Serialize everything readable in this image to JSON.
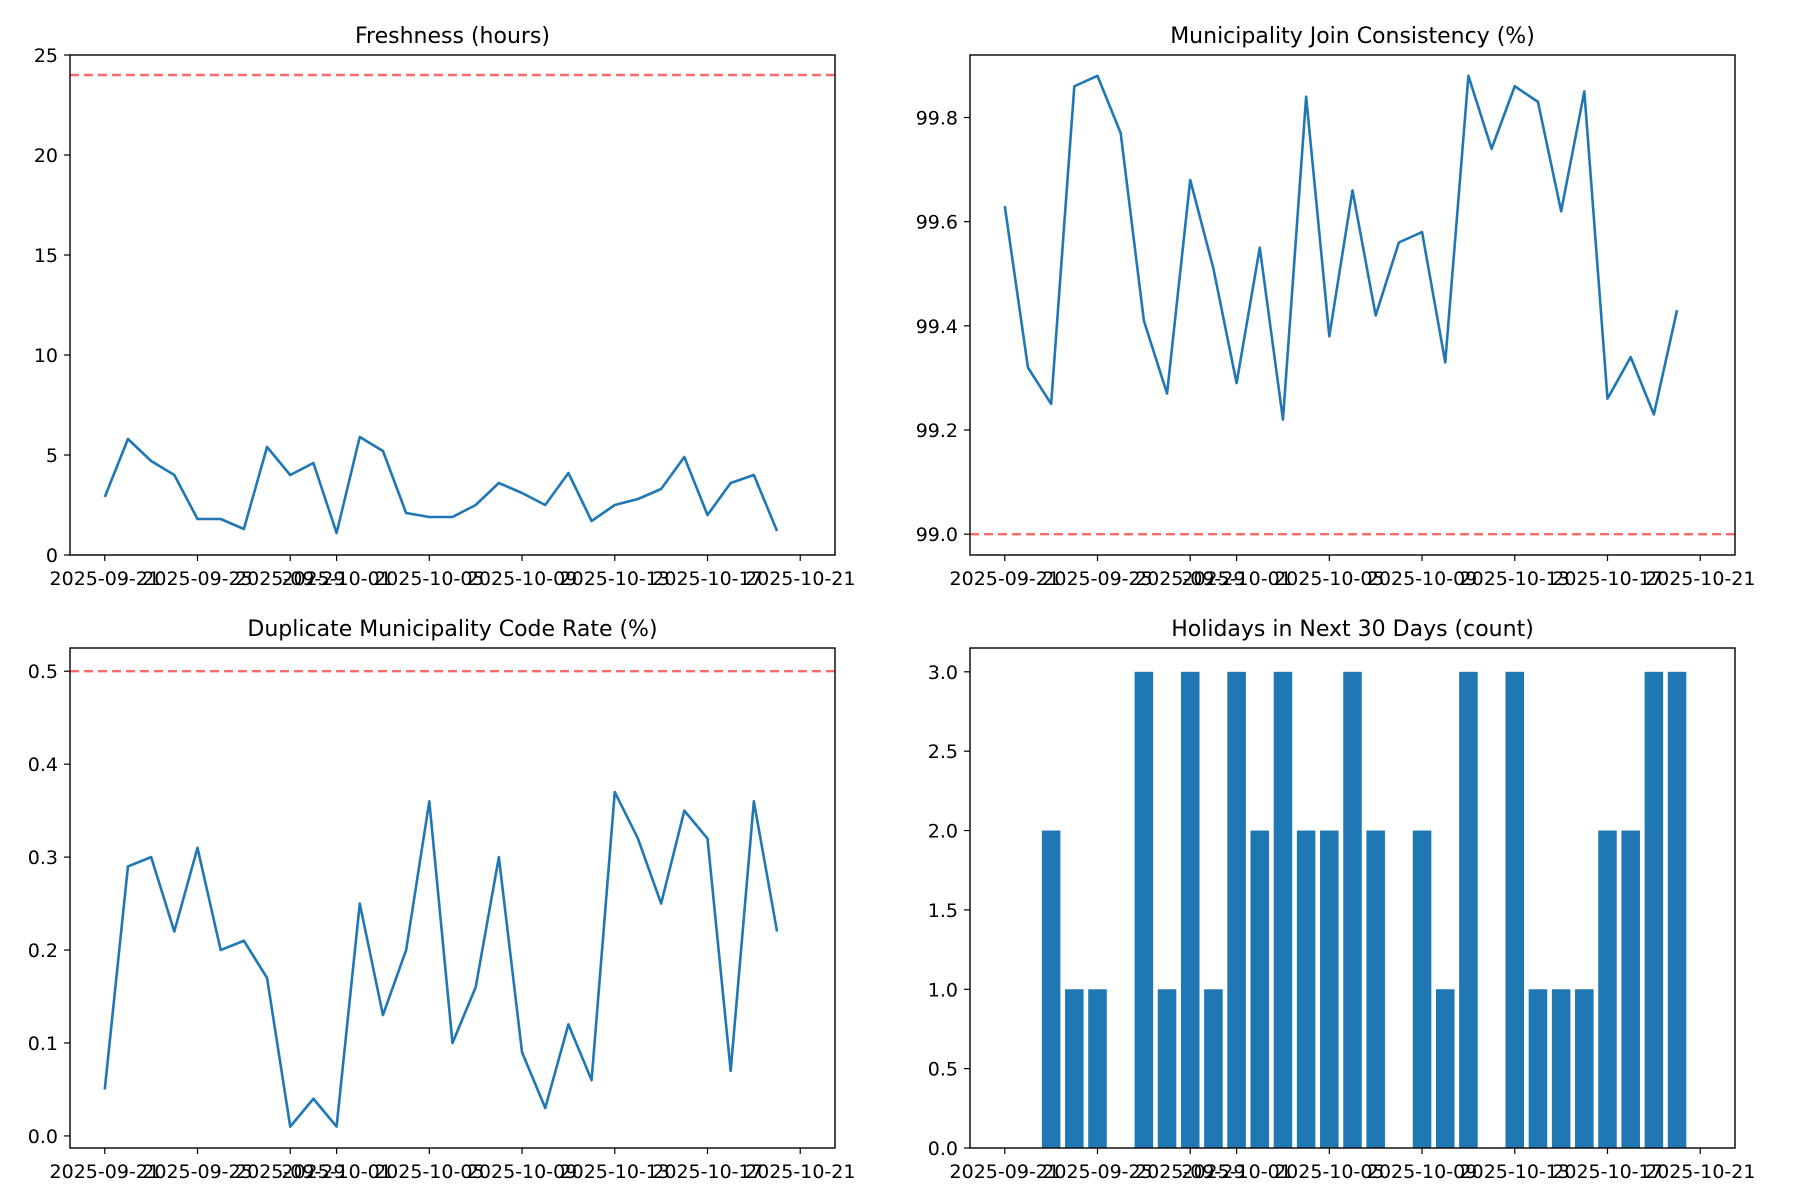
{
  "chart_data": [
    {
      "type": "line",
      "title": "Freshness (hours)",
      "xlabel": "",
      "ylabel": "",
      "x": [
        "2025-09-21",
        "2025-09-22",
        "2025-09-23",
        "2025-09-24",
        "2025-09-25",
        "2025-09-26",
        "2025-09-27",
        "2025-09-28",
        "2025-09-29",
        "2025-09-30",
        "2025-10-01",
        "2025-10-02",
        "2025-10-03",
        "2025-10-04",
        "2025-10-05",
        "2025-10-06",
        "2025-10-07",
        "2025-10-08",
        "2025-10-09",
        "2025-10-10",
        "2025-10-11",
        "2025-10-12",
        "2025-10-13",
        "2025-10-14",
        "2025-10-15",
        "2025-10-16",
        "2025-10-17",
        "2025-10-18",
        "2025-10-19",
        "2025-10-20"
      ],
      "values": [
        2.9,
        5.8,
        4.7,
        4.0,
        1.8,
        1.8,
        1.3,
        5.4,
        4.0,
        4.6,
        1.1,
        5.9,
        5.2,
        2.1,
        1.9,
        1.9,
        2.5,
        3.6,
        3.1,
        2.5,
        4.1,
        1.7,
        2.5,
        2.8,
        3.3,
        4.9,
        2.0,
        3.6,
        4.0,
        1.2
      ],
      "ylim": [
        0,
        25
      ],
      "yticks": [
        0,
        5,
        10,
        15,
        20,
        25
      ],
      "xticks": [
        "2025-09-21",
        "2025-09-25",
        "2025-09-29",
        "2025-10-01",
        "2025-10-05",
        "2025-10-09",
        "2025-10-13",
        "2025-10-17",
        "2025-10-21"
      ],
      "threshold": 24,
      "grid": false
    },
    {
      "type": "line",
      "title": "Municipality Join Consistency (%)",
      "xlabel": "",
      "ylabel": "",
      "x": [
        "2025-09-21",
        "2025-09-22",
        "2025-09-23",
        "2025-09-24",
        "2025-09-25",
        "2025-09-26",
        "2025-09-27",
        "2025-09-28",
        "2025-09-29",
        "2025-09-30",
        "2025-10-01",
        "2025-10-02",
        "2025-10-03",
        "2025-10-04",
        "2025-10-05",
        "2025-10-06",
        "2025-10-07",
        "2025-10-08",
        "2025-10-09",
        "2025-10-10",
        "2025-10-11",
        "2025-10-12",
        "2025-10-13",
        "2025-10-14",
        "2025-10-15",
        "2025-10-16",
        "2025-10-17",
        "2025-10-18",
        "2025-10-19",
        "2025-10-20"
      ],
      "values": [
        99.63,
        99.32,
        99.25,
        99.86,
        99.88,
        99.77,
        99.41,
        99.27,
        99.68,
        99.51,
        99.29,
        99.55,
        99.22,
        99.84,
        99.38,
        99.66,
        99.42,
        99.56,
        99.58,
        99.33,
        99.88,
        99.74,
        99.86,
        99.83,
        99.62,
        99.85,
        99.26,
        99.34,
        99.23,
        99.43
      ],
      "ylim": [
        98.96,
        99.92
      ],
      "yticks": [
        99.0,
        99.2,
        99.4,
        99.6,
        99.8
      ],
      "xticks": [
        "2025-09-21",
        "2025-09-25",
        "2025-09-29",
        "2025-10-01",
        "2025-10-05",
        "2025-10-09",
        "2025-10-13",
        "2025-10-17",
        "2025-10-21"
      ],
      "threshold": 99.0,
      "grid": false
    },
    {
      "type": "line",
      "title": "Duplicate Municipality Code Rate (%)",
      "xlabel": "",
      "ylabel": "",
      "x": [
        "2025-09-21",
        "2025-09-22",
        "2025-09-23",
        "2025-09-24",
        "2025-09-25",
        "2025-09-26",
        "2025-09-27",
        "2025-09-28",
        "2025-09-29",
        "2025-09-30",
        "2025-10-01",
        "2025-10-02",
        "2025-10-03",
        "2025-10-04",
        "2025-10-05",
        "2025-10-06",
        "2025-10-07",
        "2025-10-08",
        "2025-10-09",
        "2025-10-10",
        "2025-10-11",
        "2025-10-12",
        "2025-10-13",
        "2025-10-14",
        "2025-10-15",
        "2025-10-16",
        "2025-10-17",
        "2025-10-18",
        "2025-10-19",
        "2025-10-20"
      ],
      "values": [
        0.05,
        0.29,
        0.3,
        0.22,
        0.31,
        0.2,
        0.21,
        0.17,
        0.01,
        0.04,
        0.01,
        0.25,
        0.13,
        0.2,
        0.36,
        0.1,
        0.16,
        0.3,
        0.09,
        0.03,
        0.12,
        0.06,
        0.37,
        0.32,
        0.25,
        0.35,
        0.32,
        0.07,
        0.36,
        0.22
      ],
      "ylim": [
        -0.013,
        0.525
      ],
      "yticks": [
        0.0,
        0.1,
        0.2,
        0.3,
        0.4,
        0.5
      ],
      "xticks": [
        "2025-09-21",
        "2025-09-25",
        "2025-09-29",
        "2025-10-01",
        "2025-10-05",
        "2025-10-09",
        "2025-10-13",
        "2025-10-17",
        "2025-10-21"
      ],
      "threshold": 0.5,
      "grid": false
    },
    {
      "type": "bar",
      "title": "Holidays in Next 30 Days (count)",
      "xlabel": "",
      "ylabel": "",
      "x": [
        "2025-09-21",
        "2025-09-22",
        "2025-09-23",
        "2025-09-24",
        "2025-09-25",
        "2025-09-26",
        "2025-09-27",
        "2025-09-28",
        "2025-09-29",
        "2025-09-30",
        "2025-10-01",
        "2025-10-02",
        "2025-10-03",
        "2025-10-04",
        "2025-10-05",
        "2025-10-06",
        "2025-10-07",
        "2025-10-08",
        "2025-10-09",
        "2025-10-10",
        "2025-10-11",
        "2025-10-12",
        "2025-10-13",
        "2025-10-14",
        "2025-10-15",
        "2025-10-16",
        "2025-10-17",
        "2025-10-18",
        "2025-10-19",
        "2025-10-20"
      ],
      "values": [
        0,
        0,
        2,
        1,
        1,
        0,
        3,
        1,
        3,
        1,
        3,
        2,
        3,
        2,
        2,
        3,
        2,
        0,
        2,
        1,
        3,
        0,
        3,
        1,
        1,
        1,
        2,
        2,
        3,
        3
      ],
      "ylim": [
        0,
        3.15
      ],
      "yticks": [
        0.0,
        0.5,
        1.0,
        1.5,
        2.0,
        2.5,
        3.0
      ],
      "xticks": [
        "2025-09-21",
        "2025-09-25",
        "2025-09-29",
        "2025-10-01",
        "2025-10-05",
        "2025-10-09",
        "2025-10-13",
        "2025-10-17",
        "2025-10-21"
      ],
      "grid": false
    }
  ],
  "colors": {
    "series": "#1f77b4",
    "threshold": "#ff6b6b",
    "axes": "#000000"
  }
}
